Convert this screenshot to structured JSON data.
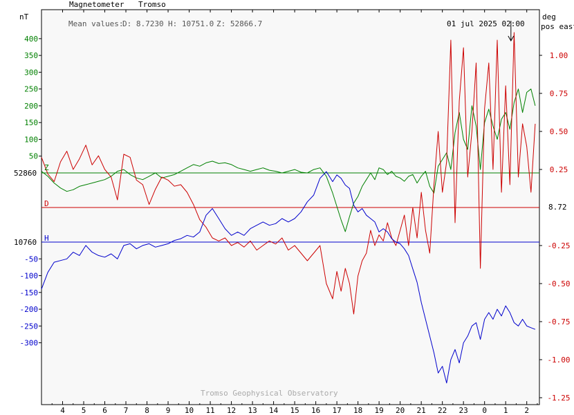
{
  "header": {
    "instrument": "Magnetometer",
    "station": "Tromso",
    "left_unit": "nT",
    "right_unit_1": "deg",
    "right_unit_2": "pos east",
    "mean_values_label": "Mean values:",
    "mean_D": "D: 8.7230",
    "mean_H": "H: 10751.0",
    "mean_Z": "Z: 52866.7",
    "timestamp": "01 jul 2025 02:00",
    "watermark": "Tromso Geophysical Observatory"
  },
  "colors": {
    "Z": "#008000",
    "D": "#cc0000",
    "H": "#0000cc",
    "axis": "#000000",
    "plot_bg": "#f8f8f8",
    "watermark": "#aaaaaa",
    "header_text": "#555555"
  },
  "chart_data": {
    "type": "line",
    "xlabel": "",
    "x_ticks": [
      "4",
      "5",
      "6",
      "7",
      "8",
      "9",
      "10",
      "11",
      "12",
      "13",
      "14",
      "15",
      "16",
      "17",
      "18",
      "19",
      "20",
      "21",
      "22",
      "23",
      "0",
      "1",
      "2"
    ],
    "xlim": [
      3,
      26.6
    ],
    "left_axis": {
      "unit": "nT",
      "green_ticks": [
        400,
        350,
        300,
        250,
        200,
        150,
        100,
        50
      ],
      "blue_ticks": [
        -50,
        -100,
        -150,
        -200,
        -250,
        -300
      ],
      "Z_reference_label": "52860",
      "H_reference_label": "10760",
      "Z_reference_value": 52860,
      "H_reference_value": 10760,
      "ylim_nT": [
        -470,
        510
      ]
    },
    "right_axis": {
      "unit": "deg",
      "ticks": [
        1.0,
        0.75,
        0.5,
        0.25,
        -0.25,
        -0.5,
        -0.75,
        -1.0,
        -1.25
      ],
      "tick_labels": [
        "1.00",
        "0.75",
        "0.50",
        "0.25",
        "-0.25",
        "-0.50",
        "-0.75",
        "-1.00",
        "-1.25"
      ],
      "D_reference_label": "8.72",
      "D_reference_value": 8.72
    },
    "series": [
      {
        "name": "Z",
        "label": "Z",
        "x": [
          3.0,
          3.3,
          3.6,
          3.9,
          4.2,
          4.5,
          4.8,
          5.1,
          5.4,
          5.7,
          6.0,
          6.3,
          6.6,
          6.9,
          7.2,
          7.5,
          7.8,
          8.1,
          8.4,
          8.7,
          9.0,
          9.3,
          9.6,
          9.9,
          10.2,
          10.5,
          10.8,
          11.1,
          11.4,
          11.7,
          12.0,
          12.3,
          12.6,
          12.9,
          13.2,
          13.5,
          13.8,
          14.1,
          14.4,
          14.7,
          15.0,
          15.3,
          15.6,
          15.9,
          16.2,
          16.5,
          16.8,
          17.0,
          17.2,
          17.4,
          17.6,
          17.8,
          18.0,
          18.2,
          18.4,
          18.6,
          18.8,
          19.0,
          19.2,
          19.4,
          19.6,
          19.8,
          20.0,
          20.2,
          20.4,
          20.6,
          20.8,
          21.0,
          21.2,
          21.4,
          21.6,
          21.8,
          22.0,
          22.2,
          22.4,
          22.6,
          22.8,
          23.0,
          23.2,
          23.4,
          23.6,
          23.8,
          24.0,
          24.2,
          24.4,
          24.6,
          24.8,
          25.0,
          25.2,
          25.4,
          25.6,
          25.8,
          26.0,
          26.2,
          26.4
        ],
        "values_nT": [
          5,
          -10,
          -30,
          -45,
          -55,
          -50,
          -40,
          -35,
          -30,
          -25,
          -20,
          -10,
          5,
          10,
          -5,
          -15,
          -20,
          -10,
          0,
          -15,
          -10,
          -5,
          5,
          15,
          25,
          20,
          30,
          35,
          28,
          30,
          25,
          15,
          10,
          5,
          10,
          15,
          8,
          5,
          0,
          5,
          10,
          2,
          0,
          10,
          15,
          -10,
          -60,
          -100,
          -140,
          -175,
          -130,
          -90,
          -70,
          -40,
          -20,
          0,
          -20,
          15,
          10,
          -5,
          5,
          -10,
          -15,
          -25,
          -10,
          -5,
          -30,
          -10,
          5,
          -40,
          -60,
          20,
          40,
          60,
          10,
          120,
          180,
          100,
          70,
          200,
          140,
          10,
          150,
          190,
          140,
          100,
          160,
          180,
          130,
          210,
          250,
          180,
          240,
          250,
          200
        ]
      },
      {
        "name": "D",
        "label": "D",
        "x": [
          3.0,
          3.3,
          3.6,
          3.9,
          4.2,
          4.5,
          4.8,
          5.1,
          5.4,
          5.7,
          6.0,
          6.3,
          6.6,
          6.9,
          7.2,
          7.5,
          7.8,
          8.1,
          8.4,
          8.7,
          9.0,
          9.3,
          9.6,
          9.9,
          10.2,
          10.5,
          10.8,
          11.1,
          11.4,
          11.7,
          12.0,
          12.3,
          12.6,
          12.9,
          13.2,
          13.5,
          13.8,
          14.1,
          14.4,
          14.7,
          15.0,
          15.3,
          15.6,
          15.9,
          16.2,
          16.5,
          16.8,
          17.0,
          17.2,
          17.4,
          17.6,
          17.8,
          18.0,
          18.2,
          18.4,
          18.6,
          18.8,
          19.0,
          19.2,
          19.4,
          19.6,
          19.8,
          20.0,
          20.2,
          20.4,
          20.6,
          20.8,
          21.0,
          21.2,
          21.4,
          21.6,
          21.8,
          22.0,
          22.2,
          22.4,
          22.6,
          22.8,
          23.0,
          23.2,
          23.4,
          23.6,
          23.8,
          24.0,
          24.2,
          24.4,
          24.6,
          24.8,
          25.0,
          25.2,
          25.4,
          25.6,
          25.8,
          26.0,
          26.2,
          26.4
        ],
        "values_deg": [
          0.33,
          0.22,
          0.17,
          0.3,
          0.37,
          0.25,
          0.32,
          0.41,
          0.28,
          0.34,
          0.25,
          0.2,
          0.05,
          0.35,
          0.33,
          0.18,
          0.15,
          0.02,
          0.12,
          0.2,
          0.18,
          0.14,
          0.15,
          0.1,
          0.02,
          -0.08,
          -0.13,
          -0.2,
          -0.22,
          -0.2,
          -0.25,
          -0.23,
          -0.26,
          -0.22,
          -0.28,
          -0.25,
          -0.22,
          -0.24,
          -0.2,
          -0.28,
          -0.25,
          -0.3,
          -0.35,
          -0.3,
          -0.25,
          -0.5,
          -0.6,
          -0.42,
          -0.55,
          -0.4,
          -0.5,
          -0.7,
          -0.45,
          -0.35,
          -0.3,
          -0.15,
          -0.25,
          -0.18,
          -0.22,
          -0.1,
          -0.2,
          -0.25,
          -0.15,
          -0.05,
          -0.25,
          0.0,
          -0.2,
          0.1,
          -0.15,
          -0.3,
          0.15,
          0.5,
          0.1,
          0.3,
          1.1,
          -0.1,
          0.7,
          1.05,
          0.2,
          0.5,
          0.95,
          -0.4,
          0.65,
          0.95,
          0.25,
          1.1,
          0.1,
          0.8,
          0.15,
          1.15,
          0.2,
          0.55,
          0.4,
          0.1,
          0.55
        ]
      },
      {
        "name": "H",
        "label": "H",
        "x": [
          3.0,
          3.3,
          3.6,
          3.9,
          4.2,
          4.5,
          4.8,
          5.1,
          5.4,
          5.7,
          6.0,
          6.3,
          6.6,
          6.9,
          7.2,
          7.5,
          7.8,
          8.1,
          8.4,
          8.7,
          9.0,
          9.3,
          9.6,
          9.9,
          10.2,
          10.5,
          10.8,
          11.1,
          11.4,
          11.7,
          12.0,
          12.3,
          12.6,
          12.9,
          13.2,
          13.5,
          13.8,
          14.1,
          14.4,
          14.7,
          15.0,
          15.3,
          15.6,
          15.9,
          16.2,
          16.5,
          16.8,
          17.0,
          17.2,
          17.4,
          17.6,
          17.8,
          18.0,
          18.2,
          18.4,
          18.6,
          18.8,
          19.0,
          19.2,
          19.4,
          19.6,
          19.8,
          20.0,
          20.2,
          20.4,
          20.6,
          20.8,
          21.0,
          21.2,
          21.4,
          21.6,
          21.8,
          22.0,
          22.2,
          22.4,
          22.6,
          22.8,
          23.0,
          23.2,
          23.4,
          23.6,
          23.8,
          24.0,
          24.2,
          24.4,
          24.6,
          24.8,
          25.0,
          25.2,
          25.4,
          25.6,
          25.8,
          26.0,
          26.2,
          26.4
        ],
        "values_nT": [
          -140,
          -90,
          -60,
          -55,
          -50,
          -30,
          -40,
          -10,
          -30,
          -40,
          -45,
          -35,
          -50,
          -10,
          -5,
          -20,
          -10,
          -5,
          -15,
          -10,
          -5,
          5,
          10,
          20,
          15,
          30,
          80,
          100,
          70,
          40,
          20,
          30,
          20,
          40,
          50,
          60,
          50,
          55,
          70,
          60,
          70,
          90,
          120,
          140,
          190,
          210,
          180,
          200,
          190,
          170,
          160,
          110,
          90,
          100,
          80,
          70,
          60,
          30,
          40,
          30,
          10,
          0,
          -5,
          -20,
          -40,
          -80,
          -120,
          -180,
          -230,
          -280,
          -330,
          -390,
          -370,
          -420,
          -350,
          -320,
          -360,
          -300,
          -280,
          -250,
          -240,
          -290,
          -230,
          -210,
          -230,
          -200,
          -220,
          -190,
          -210,
          -240,
          -250,
          -230,
          -250,
          -255,
          -260
        ]
      }
    ],
    "arrow_marker_x": 25.25
  }
}
